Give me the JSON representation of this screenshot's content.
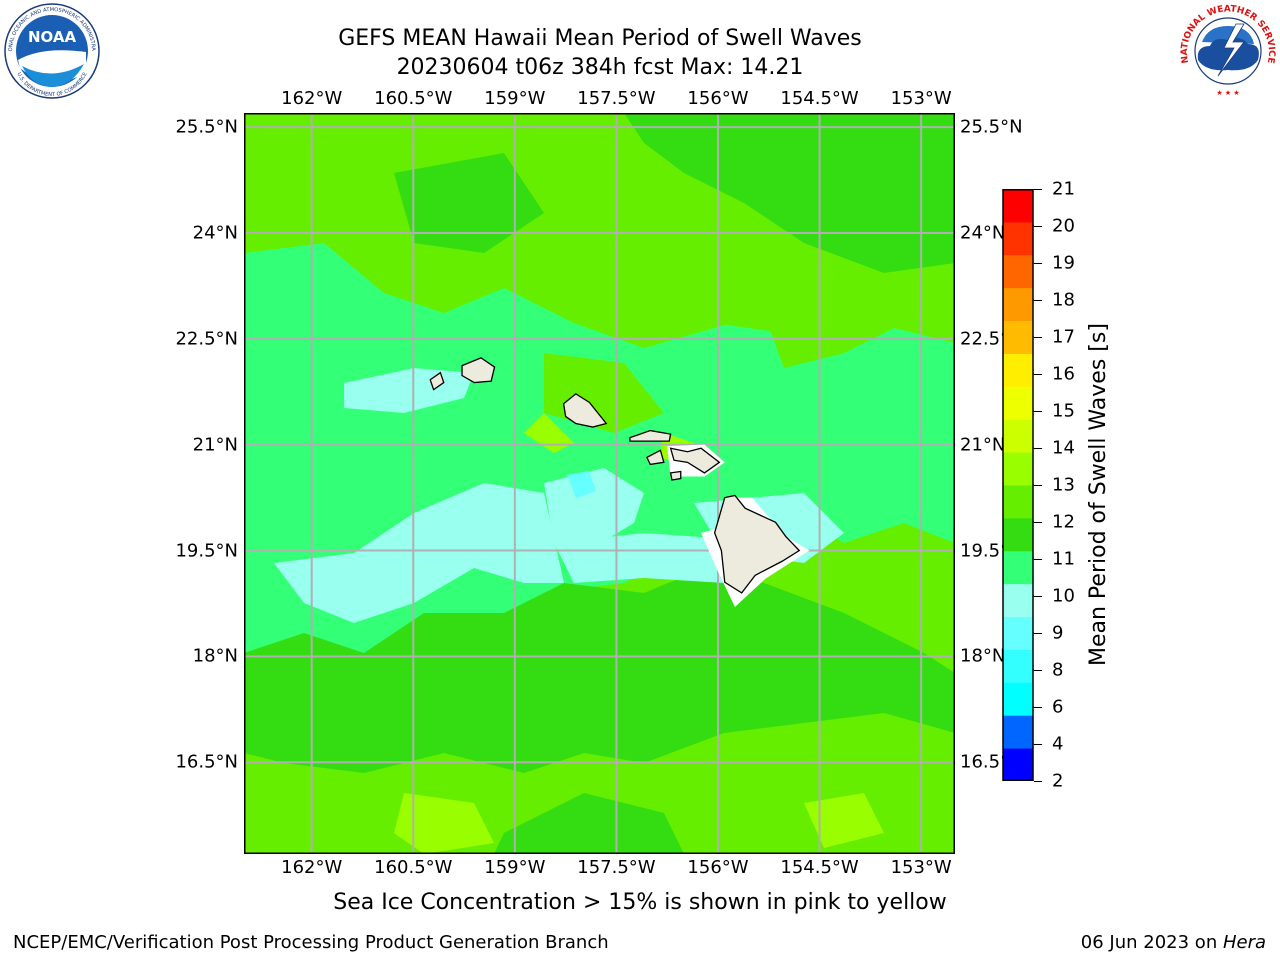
{
  "title": {
    "line1": "GEFS MEAN Hawaii Mean Period of Swell Waves",
    "line2": "20230604 t06z 384h fcst   Max: 14.21"
  },
  "map": {
    "lon_ticks": [
      "162°W",
      "160.5°W",
      "159°W",
      "157.5°W",
      "156°W",
      "154.5°W",
      "153°W"
    ],
    "lat_ticks": [
      "25.5°N",
      "24°N",
      "22.5°N",
      "21°N",
      "19.5°N",
      "18°N",
      "16.5°N"
    ],
    "lon_range": [
      -163,
      -152.5
    ],
    "lat_range": [
      15.2,
      25.7
    ]
  },
  "colorbar": {
    "label": "Mean Period of Swell Waves [s]",
    "ticks": [
      "2",
      "4",
      "6",
      "8",
      "9",
      "10",
      "11",
      "12",
      "13",
      "14",
      "15",
      "16",
      "17",
      "18",
      "19",
      "20",
      "21"
    ],
    "colors": [
      "#0000ff",
      "#0066ff",
      "#00ffff",
      "#33ffff",
      "#66ffff",
      "#99ffee",
      "#33ff77",
      "#33dd11",
      "#66ee00",
      "#99ff00",
      "#ccff00",
      "#eeff00",
      "#ffee00",
      "#ffbb00",
      "#ff9900",
      "#ff6600",
      "#ff3300",
      "#ff0000"
    ]
  },
  "note": "Sea Ice Concentration > 15% is shown in pink to yellow",
  "footer": {
    "left": "NCEP/EMC/Verification Post Processing Product Generation Branch",
    "date": "06 Jun 2023 on ",
    "host": "Hera"
  },
  "logos": {
    "noaa_text": "NOAA",
    "noaa_ring_top": "NATIONAL OCEANIC AND ATMOSPHERIC ADMINISTRATION",
    "noaa_ring_bottom": "U.S. DEPARTMENT OF COMMERCE",
    "nws_ring": "NATIONAL WEATHER SERVICE"
  }
}
